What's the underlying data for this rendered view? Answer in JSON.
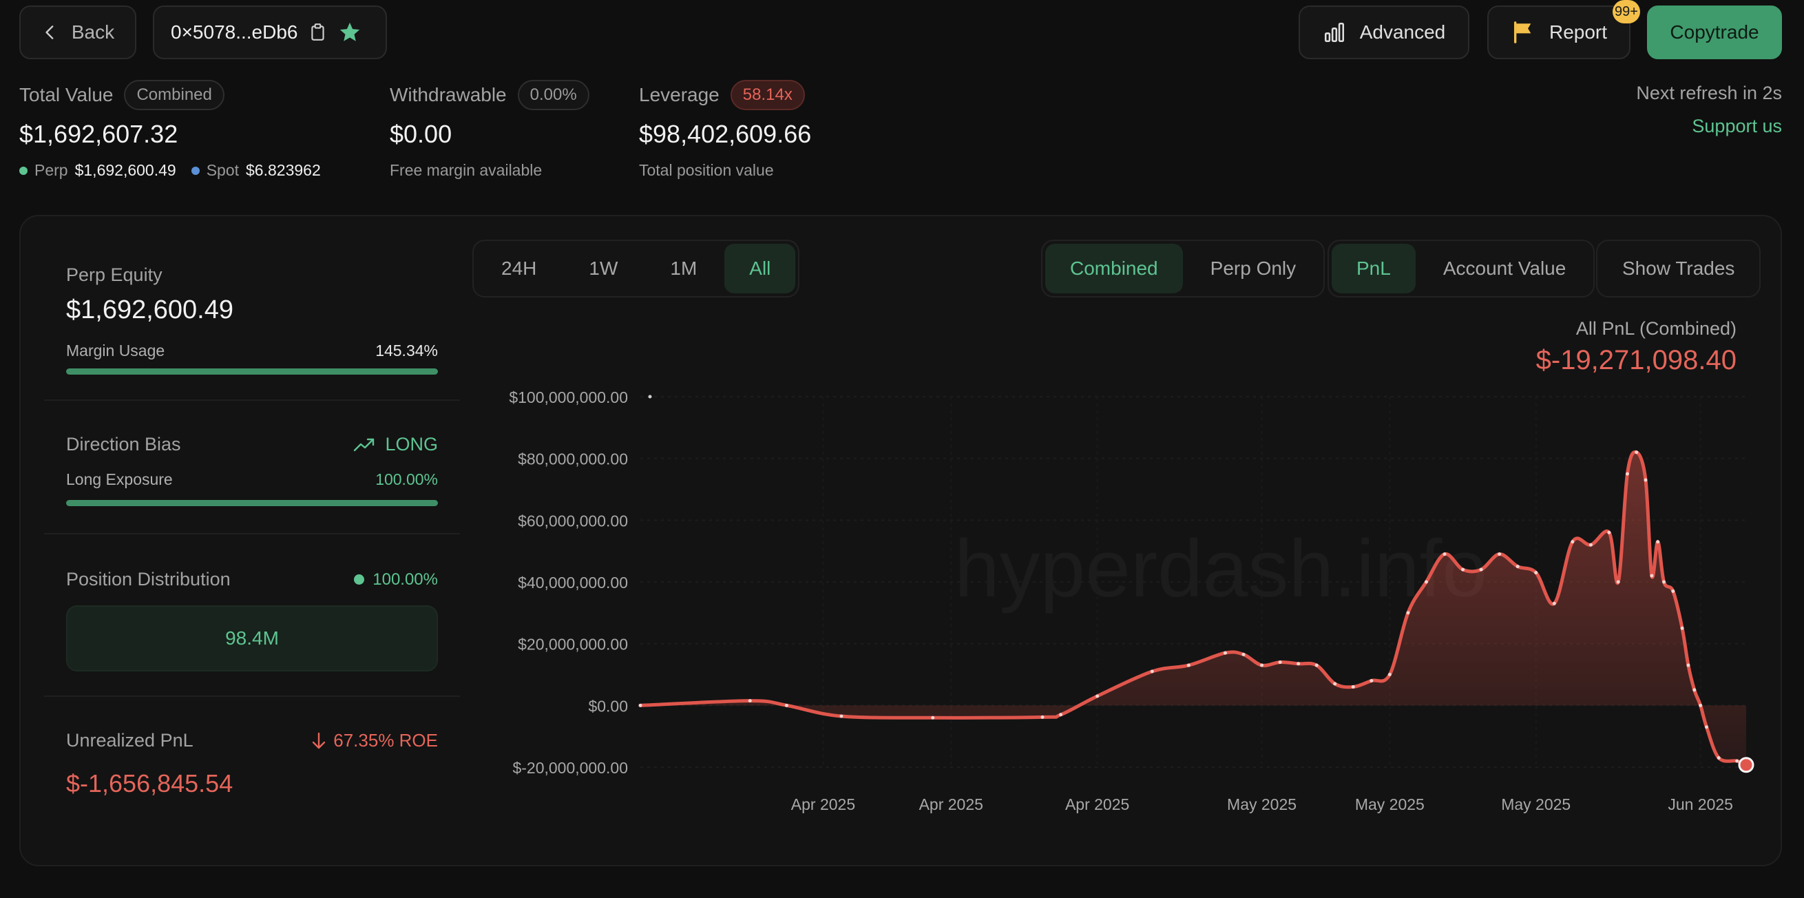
{
  "topbar": {
    "back_label": "Back",
    "address": "0×5078...eDb6",
    "advanced_label": "Advanced",
    "report_label": "Report",
    "report_badge": "99+",
    "copytrade_label": "Copytrade"
  },
  "summary": {
    "total_value": {
      "label": "Total Value",
      "badge": "Combined",
      "value": "$1,692,607.32",
      "perp_label": "Perp",
      "perp_value": "$1,692,600.49",
      "spot_label": "Spot",
      "spot_value": "$6.823962"
    },
    "withdrawable": {
      "label": "Withdrawable",
      "badge": "0.00%",
      "value": "$0.00",
      "sub": "Free margin available"
    },
    "leverage": {
      "label": "Leverage",
      "badge": "58.14x",
      "value": "$98,402,609.66",
      "sub": "Total position value"
    },
    "refresh_text": "Next refresh in 2s",
    "support_link": "Support us"
  },
  "sidebar": {
    "perp_equity_label": "Perp Equity",
    "perp_equity_value": "$1,692,600.49",
    "margin_usage_label": "Margin Usage",
    "margin_usage_value": "145.34%",
    "margin_usage_fill": 1.0,
    "direction_bias_label": "Direction Bias",
    "direction_bias_value": "LONG",
    "long_exposure_label": "Long Exposure",
    "long_exposure_value": "100.00%",
    "long_exposure_fill": 1.0,
    "position_distribution_label": "Position Distribution",
    "position_distribution_value": "100.00%",
    "position_distribution_box": "98.4M",
    "unrealized_pnl_label": "Unrealized PnL",
    "roe_value": "67.35% ROE",
    "unrealized_pnl_value": "$-1,656,845.54"
  },
  "controls": {
    "ranges": [
      "24H",
      "1W",
      "1M",
      "All"
    ],
    "active_range": "All",
    "scope": [
      "Combined",
      "Perp Only"
    ],
    "active_scope": "Combined",
    "metric": [
      "PnL",
      "Account Value"
    ],
    "active_metric": "PnL",
    "show_trades_label": "Show Trades"
  },
  "colors": {
    "accent_green": "#5ec491",
    "loss_red": "#e5655a",
    "line_red": "#e0564c"
  },
  "chart_data": {
    "type": "area",
    "title": "All PnL (Combined)",
    "headline_value": "$-19,271,098.40",
    "watermark": "hyperdash.info",
    "ylim": [
      -20000000,
      100000000
    ],
    "y_ticks": [
      {
        "value": 100000000,
        "label": "$100,000,000.00"
      },
      {
        "value": 80000000,
        "label": "$80,000,000.00"
      },
      {
        "value": 60000000,
        "label": "$60,000,000.00"
      },
      {
        "value": 40000000,
        "label": "$40,000,000.00"
      },
      {
        "value": 20000000,
        "label": "$20,000,000.00"
      },
      {
        "value": 0,
        "label": "$0.00"
      },
      {
        "value": -20000000,
        "label": "$-20,000,000.00"
      }
    ],
    "x_ticks": [
      {
        "date": "2025-04-05",
        "label": "Apr 2025"
      },
      {
        "date": "2025-04-12",
        "label": "Apr 2025"
      },
      {
        "date": "2025-04-20",
        "label": "Apr 2025"
      },
      {
        "date": "2025-04-29",
        "label": "May 2025"
      },
      {
        "date": "2025-05-06",
        "label": "May 2025"
      },
      {
        "date": "2025-05-14",
        "label": "May 2025"
      },
      {
        "date": "2025-05-23",
        "label": "Jun 2025"
      }
    ],
    "points": [
      {
        "date": "2025-03-26",
        "value": 0
      },
      {
        "date": "2025-04-01",
        "value": 1500000
      },
      {
        "date": "2025-04-03",
        "value": 0
      },
      {
        "date": "2025-04-06",
        "value": -3500000
      },
      {
        "date": "2025-04-11",
        "value": -4000000
      },
      {
        "date": "2025-04-17",
        "value": -3800000
      },
      {
        "date": "2025-04-18",
        "value": -3000000
      },
      {
        "date": "2025-04-20",
        "value": 3000000
      },
      {
        "date": "2025-04-23",
        "value": 11000000
      },
      {
        "date": "2025-04-25",
        "value": 13000000
      },
      {
        "date": "2025-04-27",
        "value": 17000000
      },
      {
        "date": "2025-04-28",
        "value": 16500000
      },
      {
        "date": "2025-04-29",
        "value": 13000000
      },
      {
        "date": "2025-04-30",
        "value": 14000000
      },
      {
        "date": "2025-05-01",
        "value": 13500000
      },
      {
        "date": "2025-05-02",
        "value": 13000000
      },
      {
        "date": "2025-05-03",
        "value": 7000000
      },
      {
        "date": "2025-05-04",
        "value": 6000000
      },
      {
        "date": "2025-05-05",
        "value": 8000000
      },
      {
        "date": "2025-05-06",
        "value": 10000000
      },
      {
        "date": "2025-05-07",
        "value": 30000000
      },
      {
        "date": "2025-05-08",
        "value": 40000000
      },
      {
        "date": "2025-05-09",
        "value": 49000000
      },
      {
        "date": "2025-05-10",
        "value": 44000000
      },
      {
        "date": "2025-05-11",
        "value": 44000000
      },
      {
        "date": "2025-05-12",
        "value": 49000000
      },
      {
        "date": "2025-05-13",
        "value": 45000000
      },
      {
        "date": "2025-05-14",
        "value": 43000000
      },
      {
        "date": "2025-05-15",
        "value": 33000000
      },
      {
        "date": "2025-05-16",
        "value": 53000000
      },
      {
        "date": "2025-05-17",
        "value": 52000000
      },
      {
        "date": "2025-05-18",
        "value": 56000000
      },
      {
        "date": "2025-05-18T12:00",
        "value": 40000000
      },
      {
        "date": "2025-05-19",
        "value": 75000000
      },
      {
        "date": "2025-05-19T12:00",
        "value": 82000000
      },
      {
        "date": "2025-05-20",
        "value": 73000000
      },
      {
        "date": "2025-05-20T08:00",
        "value": 42000000
      },
      {
        "date": "2025-05-20T16:00",
        "value": 53000000
      },
      {
        "date": "2025-05-21",
        "value": 40000000
      },
      {
        "date": "2025-05-21T12:00",
        "value": 37000000
      },
      {
        "date": "2025-05-22",
        "value": 25000000
      },
      {
        "date": "2025-05-22T08:00",
        "value": 13000000
      },
      {
        "date": "2025-05-22T16:00",
        "value": 5000000
      },
      {
        "date": "2025-05-23",
        "value": 0
      },
      {
        "date": "2025-05-23T08:00",
        "value": -7000000
      },
      {
        "date": "2025-05-24",
        "value": -17000000
      },
      {
        "date": "2025-05-25",
        "value": -18000000
      },
      {
        "date": "2025-05-25T12:00",
        "value": -19271098.4
      }
    ]
  }
}
